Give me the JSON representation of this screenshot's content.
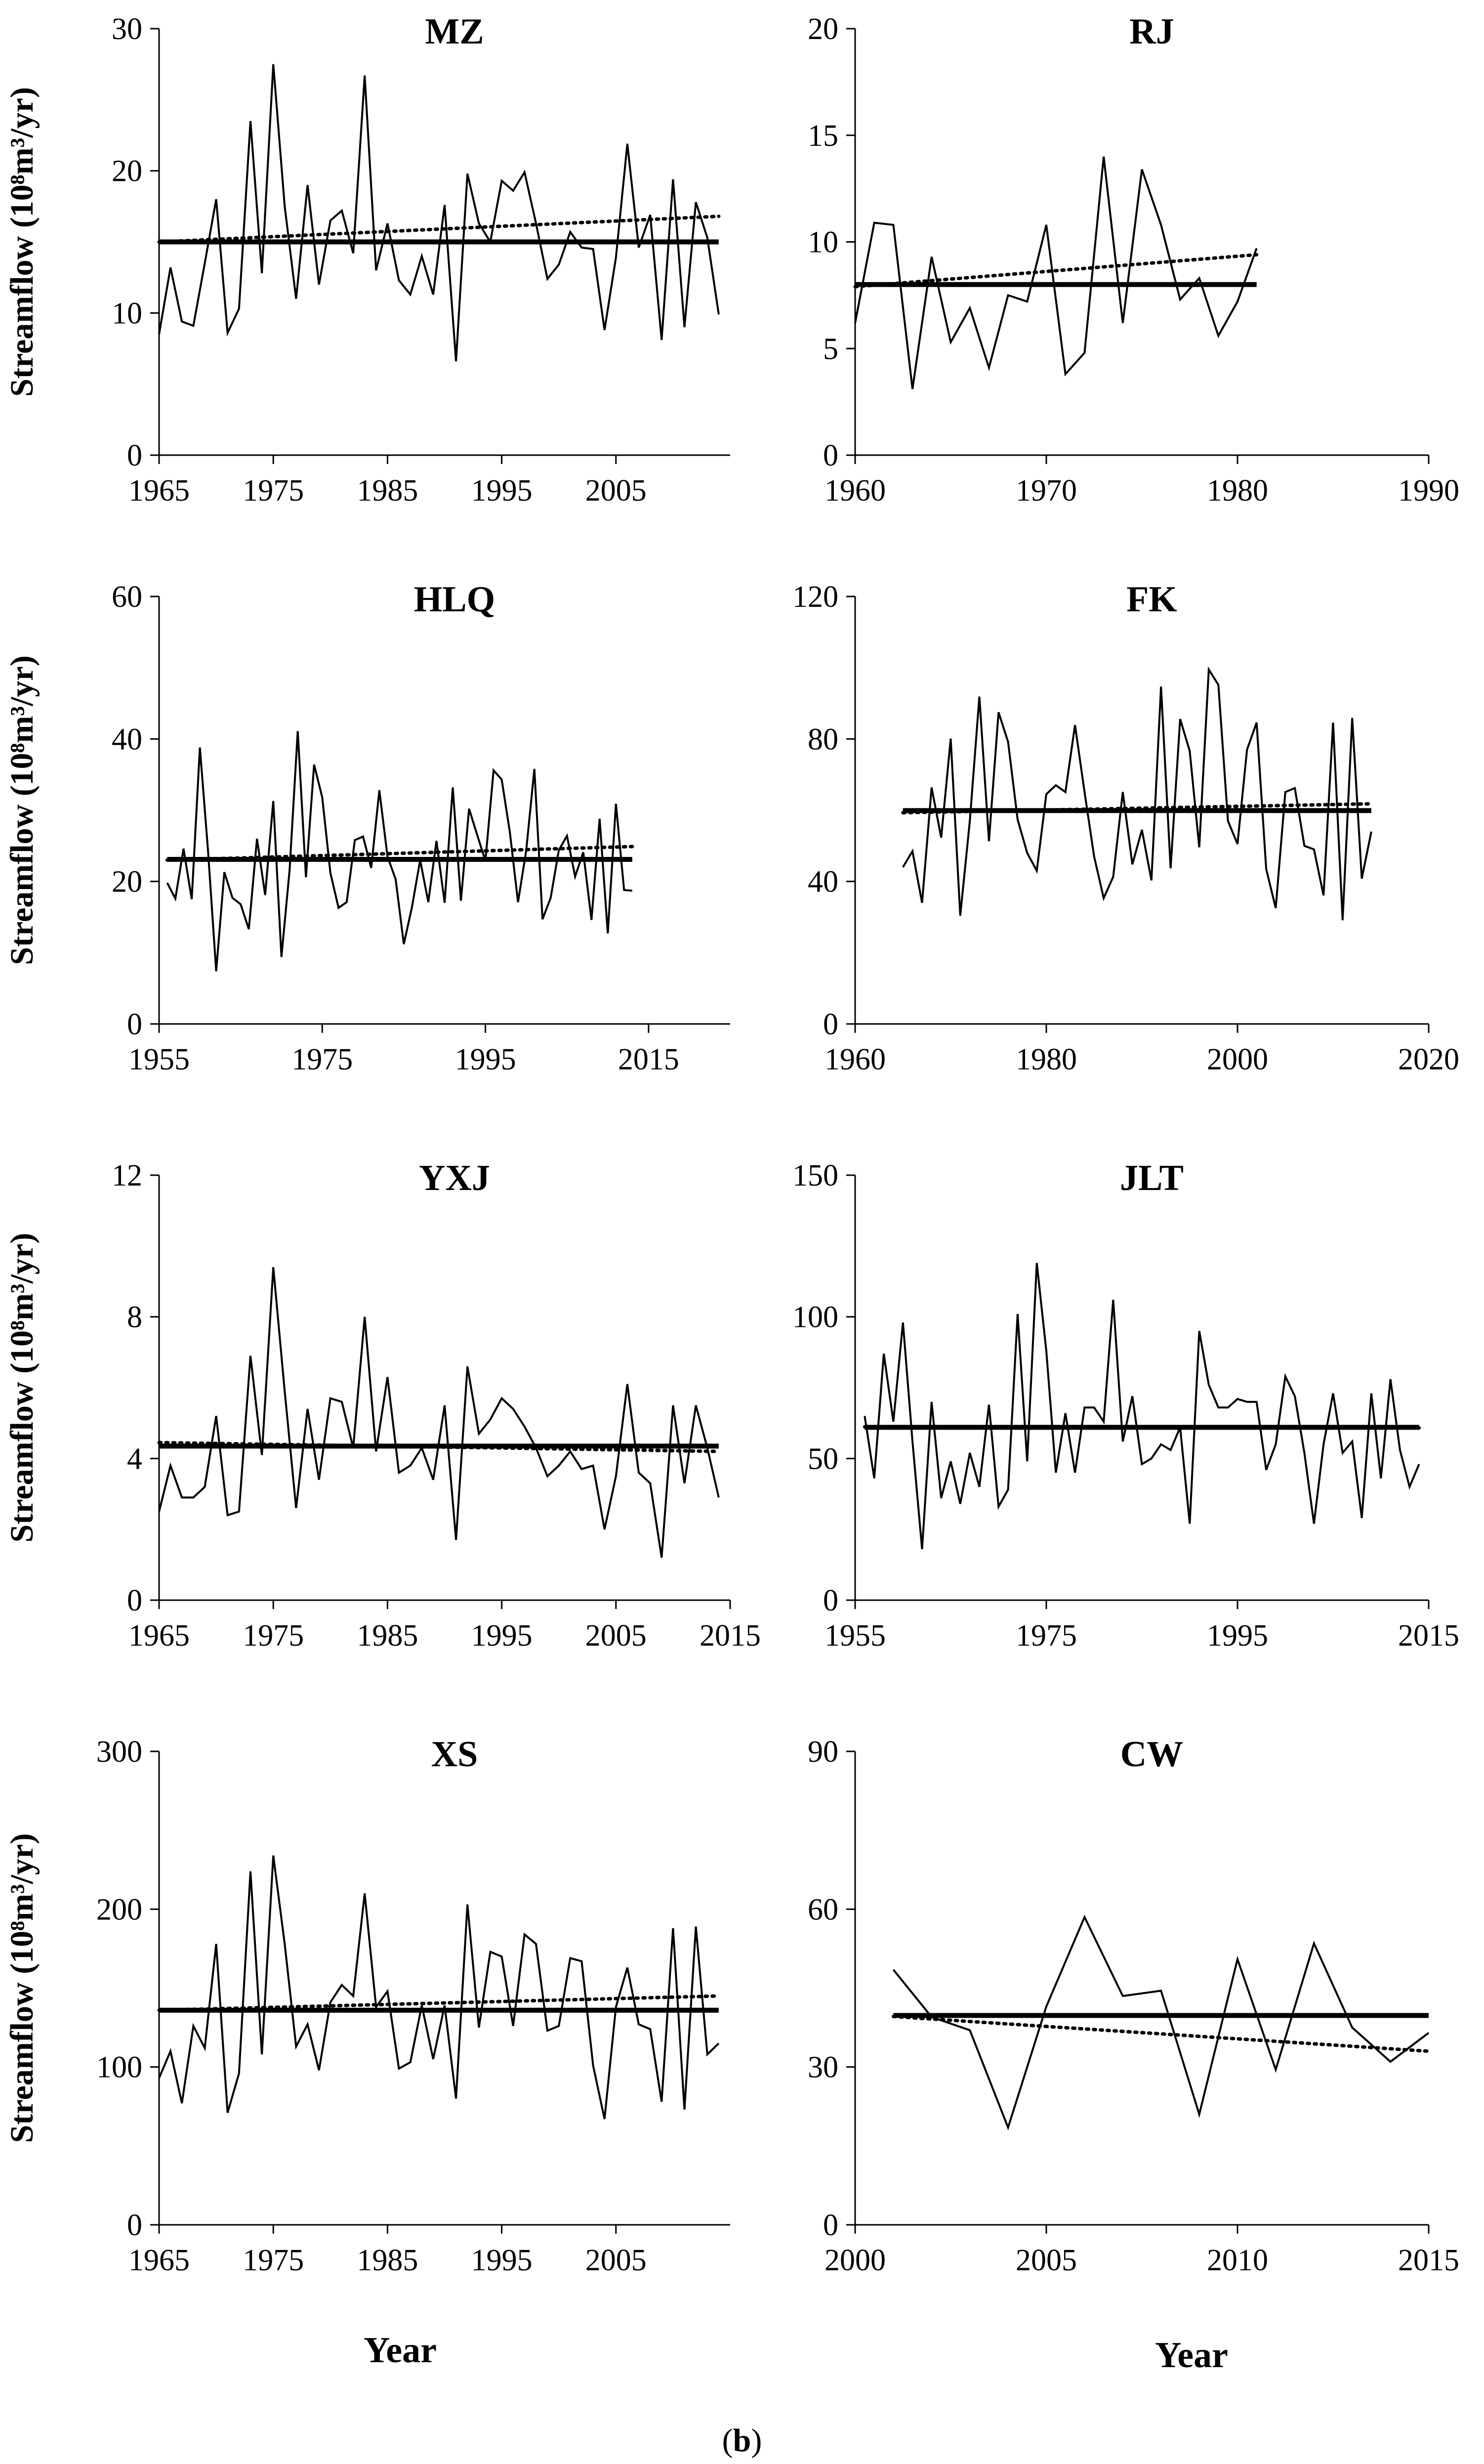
{
  "figure": {
    "xlabel": "Year",
    "caption_open": "(",
    "caption_label": "b",
    "caption_close": ")"
  },
  "chart_data": [
    {
      "id": "mz",
      "type": "line",
      "title": "MZ",
      "ylabel": "Streamflow (10⁸m³/yr)",
      "xlim": [
        1965,
        2015
      ],
      "ylim": [
        0,
        30
      ],
      "xticks": [
        1965,
        1975,
        1985,
        1995,
        2005
      ],
      "yticks": [
        0,
        10,
        20,
        30
      ],
      "x_start": 1965,
      "values": [
        8.5,
        13.2,
        9.4,
        9.1,
        13.5,
        18.0,
        8.6,
        10.3,
        23.5,
        12.8,
        27.5,
        17.5,
        11.0,
        19.0,
        12.0,
        16.5,
        17.2,
        14.2,
        26.7,
        13.0,
        16.3,
        12.3,
        11.3,
        14.0,
        11.3,
        17.6,
        6.6,
        19.8,
        16.3,
        15.0,
        19.3,
        18.6,
        19.9,
        16.3,
        12.4,
        13.4,
        15.7,
        14.6,
        14.5,
        8.8,
        13.9,
        21.9,
        14.6,
        16.9,
        8.1,
        19.4,
        9.0,
        17.8,
        15.3,
        9.9
      ],
      "mean": 15.0,
      "trend": [
        15.0,
        16.8
      ]
    },
    {
      "id": "rj",
      "type": "line",
      "title": "RJ",
      "ylabel": "",
      "xlim": [
        1960,
        1990
      ],
      "ylim": [
        0,
        20
      ],
      "xticks": [
        1960,
        1970,
        1980,
        1990
      ],
      "yticks": [
        0,
        5,
        10,
        15,
        20
      ],
      "x_start": 1960,
      "values": [
        6.2,
        10.9,
        10.8,
        3.1,
        9.3,
        5.3,
        6.9,
        4.1,
        7.5,
        7.2,
        10.8,
        3.8,
        4.8,
        14.0,
        6.2,
        13.4,
        10.8,
        7.3,
        8.3,
        5.6,
        7.2,
        9.7
      ],
      "mean": 8.0,
      "trend": [
        7.9,
        9.4
      ]
    },
    {
      "id": "hlq",
      "type": "line",
      "title": "HLQ",
      "ylabel": "Streamflow (10⁸m³/yr)",
      "xlim": [
        1955,
        2025
      ],
      "ylim": [
        0,
        60
      ],
      "xticks": [
        1955,
        1975,
        1995,
        2015
      ],
      "yticks": [
        0,
        20,
        40,
        60
      ],
      "x_start": 1956,
      "values": [
        19.8,
        17.6,
        24.6,
        17.5,
        38.8,
        24.3,
        7.4,
        21.3,
        17.7,
        16.8,
        13.3,
        26.0,
        18.1,
        31.3,
        9.4,
        21.6,
        41.1,
        20.6,
        36.4,
        31.8,
        21.2,
        16.3,
        17.1,
        25.8,
        26.3,
        21.9,
        32.8,
        23.5,
        20.3,
        11.2,
        16.4,
        23.0,
        17.1,
        25.7,
        17.0,
        33.2,
        17.3,
        30.2,
        26.5,
        22.9,
        35.6,
        34.3,
        26.9,
        17.1,
        24.3,
        35.8,
        14.7,
        17.7,
        24.4,
        26.4,
        20.7,
        24.1,
        14.6,
        28.8,
        12.7,
        30.9,
        18.8,
        18.7
      ],
      "mean": 23.1,
      "trend": [
        23.0,
        24.9
      ]
    },
    {
      "id": "fk",
      "type": "line",
      "title": "FK",
      "ylabel": "",
      "xlim": [
        1960,
        2020
      ],
      "ylim": [
        0,
        120
      ],
      "xticks": [
        1960,
        1980,
        2000,
        2020
      ],
      "yticks": [
        0,
        40,
        80,
        120
      ],
      "x_start": 1965,
      "values": [
        44.0,
        48.5,
        34.0,
        66.4,
        52.3,
        80.1,
        30.4,
        57.0,
        91.9,
        51.3,
        87.5,
        79.2,
        57.4,
        48.0,
        43.0,
        64.5,
        67.0,
        65.1,
        83.9,
        65.1,
        47.0,
        35.3,
        41.3,
        65.1,
        44.8,
        54.5,
        40.3,
        94.7,
        43.7,
        85.6,
        76.6,
        49.6,
        99.5,
        95.2,
        57.0,
        50.5,
        77.0,
        84.6,
        43.5,
        32.5,
        65.1,
        66.2,
        50.0,
        49.0,
        36.1,
        84.6,
        29.1,
        85.9,
        40.8,
        54.0
      ],
      "mean": 59.9,
      "trend": [
        59.3,
        61.8
      ]
    },
    {
      "id": "yxj",
      "type": "line",
      "title": "YXJ",
      "ylabel": "Streamflow (10⁸m³/yr)",
      "xlim": [
        1965,
        2015
      ],
      "ylim": [
        0,
        12
      ],
      "xticks": [
        1965,
        1975,
        1985,
        1995,
        2005,
        2015
      ],
      "yticks": [
        0,
        4,
        8,
        12
      ],
      "x_start": 1965,
      "values": [
        2.5,
        3.8,
        2.9,
        2.9,
        3.2,
        5.2,
        2.4,
        2.5,
        6.9,
        4.1,
        9.4,
        5.9,
        2.6,
        5.4,
        3.4,
        5.7,
        5.6,
        4.3,
        8.0,
        4.2,
        6.3,
        3.6,
        3.8,
        4.3,
        3.4,
        5.5,
        1.7,
        6.6,
        4.7,
        5.1,
        5.7,
        5.4,
        4.9,
        4.3,
        3.5,
        3.8,
        4.2,
        3.7,
        3.8,
        2.0,
        3.5,
        6.1,
        3.6,
        3.3,
        1.2,
        5.5,
        3.3,
        5.5,
        4.3,
        2.9
      ],
      "mean": 4.35,
      "trend": [
        4.45,
        4.2
      ]
    },
    {
      "id": "jlt",
      "type": "line",
      "title": "JLT",
      "ylabel": "",
      "xlim": [
        1955,
        2015
      ],
      "ylim": [
        0,
        150
      ],
      "xticks": [
        1955,
        1975,
        1995,
        2015
      ],
      "yticks": [
        0,
        50,
        100,
        150
      ],
      "x_start": 1956,
      "values": [
        65,
        43,
        87,
        63,
        98,
        56,
        18,
        70,
        36,
        49,
        34,
        52,
        40,
        69,
        33,
        39,
        101,
        49,
        119,
        88,
        45,
        66,
        45,
        68,
        68,
        63,
        106,
        56,
        72,
        48,
        50,
        55,
        53,
        61,
        27,
        95,
        76,
        68,
        68,
        71,
        70,
        70,
        46,
        55,
        79,
        72,
        52,
        27,
        55,
        73,
        52,
        56,
        29,
        73,
        43,
        78,
        53,
        40,
        48
      ],
      "mean": 61.0,
      "trend": [
        61.2,
        60.8
      ]
    },
    {
      "id": "xs",
      "type": "line",
      "title": "XS",
      "ylabel": "Streamflow (10⁸m³/yr)",
      "xlim": [
        1965,
        2015
      ],
      "ylim": [
        0,
        300
      ],
      "xticks": [
        1965,
        1975,
        1985,
        1995,
        2005
      ],
      "yticks": [
        0,
        100,
        200,
        300
      ],
      "x_start": 1965,
      "values": [
        93,
        110,
        77,
        126,
        112,
        178,
        71,
        96,
        224,
        108,
        234,
        178,
        113,
        127,
        98,
        141,
        152,
        145,
        210,
        138,
        148,
        99,
        103,
        139,
        105,
        139,
        80,
        203,
        125,
        173,
        170,
        126,
        184,
        178,
        123,
        126,
        169,
        167,
        101,
        67,
        138,
        163,
        127,
        124,
        78,
        188,
        73,
        189,
        108,
        115
      ],
      "mean": 136,
      "trend": [
        136,
        145
      ]
    },
    {
      "id": "cw",
      "type": "line",
      "title": "CW",
      "ylabel": "",
      "xlim": [
        2000,
        2015
      ],
      "ylim": [
        0,
        90
      ],
      "xticks": [
        2000,
        2005,
        2010,
        2015
      ],
      "yticks": [
        0,
        30,
        60,
        90
      ],
      "x_start": 2001,
      "values": [
        48.5,
        39.5,
        37.0,
        18.5,
        41.5,
        58.5,
        43.5,
        44.5,
        21.0,
        50.5,
        29.5,
        53.5,
        37.5,
        31.0,
        36.5
      ],
      "mean": 39.8,
      "trend": [
        39.6,
        33.0
      ]
    }
  ]
}
